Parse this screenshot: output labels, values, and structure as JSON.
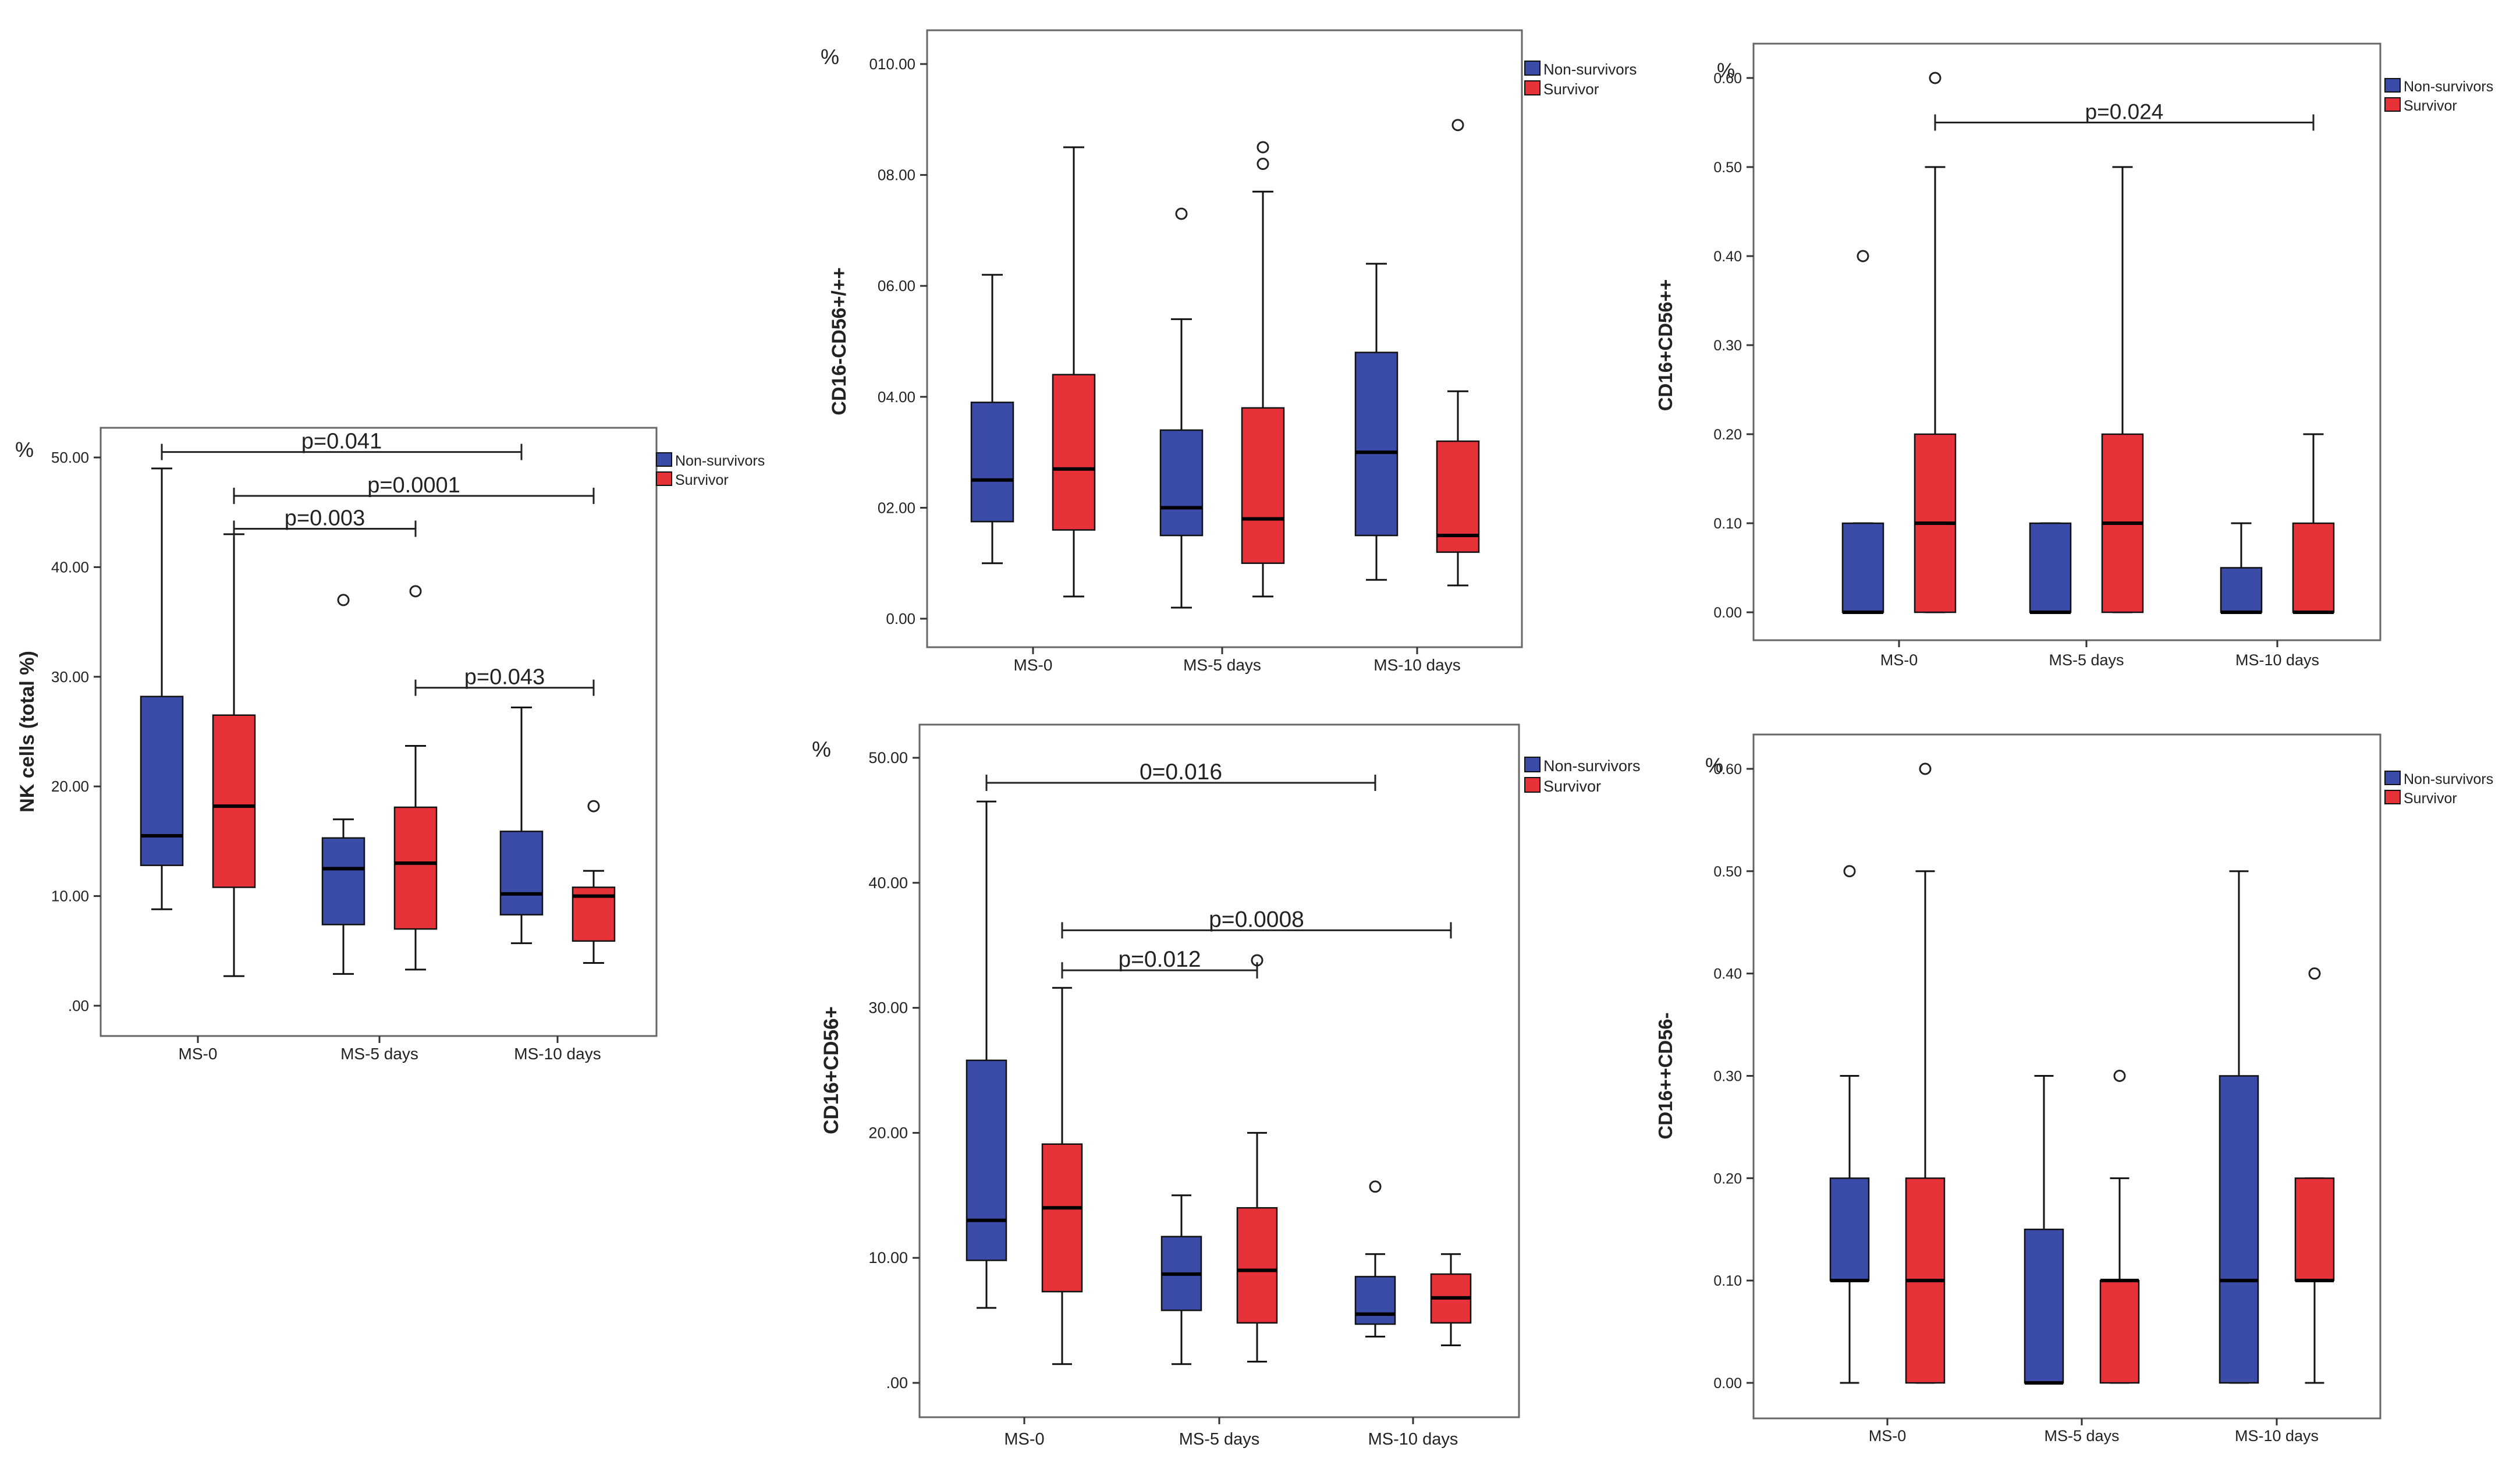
{
  "colors": {
    "nonsurvivor": "#3a4ba8",
    "survivor": "#e8323a",
    "axis": "#333333",
    "frame": "#666666"
  },
  "chart_data": [
    {
      "id": "nk",
      "type": "boxplot",
      "ylabel": "NK cells (total %)",
      "unit": "%",
      "ylim": [
        0,
        50
      ],
      "yticks": [
        0,
        10,
        20,
        30,
        40,
        50
      ],
      "ytick_labels": [
        ".00",
        "10.00",
        "20.00",
        "30.00",
        "40.00",
        "50.00"
      ],
      "categories": [
        "MS-0",
        "MS-5 days",
        "MS-10 days"
      ],
      "legend": [
        "Non-survivors",
        "Survivor"
      ],
      "series": [
        {
          "name": "Non-survivors",
          "color": "nonsurvivor",
          "boxes": [
            {
              "min": 8.8,
              "q1": 12.8,
              "median": 15.5,
              "q3": 28.2,
              "max": 49,
              "outliers": []
            },
            {
              "min": 2.9,
              "q1": 7.4,
              "median": 12.5,
              "q3": 15.3,
              "max": 17,
              "outliers": [
                37
              ]
            },
            {
              "min": 5.7,
              "q1": 8.3,
              "median": 10.2,
              "q3": 15.9,
              "max": 27.2,
              "outliers": []
            }
          ]
        },
        {
          "name": "Survivor",
          "color": "survivor",
          "boxes": [
            {
              "min": 2.7,
              "q1": 10.8,
              "median": 18.2,
              "q3": 26.5,
              "max": 43,
              "outliers": []
            },
            {
              "min": 3.3,
              "q1": 7,
              "median": 13,
              "q3": 18.1,
              "max": 23.7,
              "outliers": [
                37.8
              ]
            },
            {
              "min": 3.9,
              "q1": 5.9,
              "median": 10,
              "q3": 10.8,
              "max": 12.3,
              "outliers": [
                18.2
              ]
            }
          ]
        }
      ],
      "annotations": [
        {
          "label": "p=0.041",
          "from": [
            0,
            0
          ],
          "to": [
            2,
            0
          ],
          "y": 50.5
        },
        {
          "label": "p=0.0001",
          "from": [
            0,
            1
          ],
          "to": [
            2,
            1
          ],
          "y": 46.5
        },
        {
          "label": "p=0.003",
          "from": [
            0,
            1
          ],
          "to": [
            1,
            1
          ],
          "y": 43.5
        },
        {
          "label": "p=0.043",
          "from": [
            1,
            1
          ],
          "to": [
            2,
            1
          ],
          "y": 29
        }
      ]
    },
    {
      "id": "cd16neg",
      "type": "boxplot",
      "ylabel": "CD16-CD56+/++",
      "unit": "%",
      "ylim": [
        0,
        10
      ],
      "yticks": [
        0,
        2,
        4,
        6,
        8,
        10
      ],
      "ytick_labels": [
        "0.00",
        "02.00",
        "04.00",
        "06.00",
        "08.00",
        "010.00"
      ],
      "categories": [
        "MS-0",
        "MS-5 days",
        "MS-10 days"
      ],
      "legend": [
        "Non-survivors",
        "Survivor"
      ],
      "series": [
        {
          "name": "Non-survivors",
          "color": "nonsurvivor",
          "boxes": [
            {
              "min": 1,
              "q1": 1.75,
              "median": 2.5,
              "q3": 3.9,
              "max": 6.2,
              "outliers": []
            },
            {
              "min": 0.2,
              "q1": 1.5,
              "median": 2,
              "q3": 3.4,
              "max": 5.4,
              "outliers": [
                7.3
              ]
            },
            {
              "min": 0.7,
              "q1": 1.5,
              "median": 3,
              "q3": 4.8,
              "max": 6.4,
              "outliers": []
            }
          ]
        },
        {
          "name": "Survivor",
          "color": "survivor",
          "boxes": [
            {
              "min": 0.4,
              "q1": 1.6,
              "median": 2.7,
              "q3": 4.4,
              "max": 8.5,
              "outliers": []
            },
            {
              "min": 0.4,
              "q1": 1,
              "median": 1.8,
              "q3": 3.8,
              "max": 7.7,
              "outliers": [
                8.2,
                8.5
              ]
            },
            {
              "min": 0.6,
              "q1": 1.2,
              "median": 1.5,
              "q3": 3.2,
              "max": 4.1,
              "outliers": [
                8.9
              ]
            }
          ]
        }
      ],
      "annotations": []
    },
    {
      "id": "cd16pos",
      "type": "boxplot",
      "ylabel": "CD16+CD56++",
      "unit": "%",
      "ylim": [
        0,
        0.6
      ],
      "yticks": [
        0,
        0.1,
        0.2,
        0.3,
        0.4,
        0.5,
        0.6
      ],
      "ytick_labels": [
        "0.00",
        "0.10",
        "0.20",
        "0.30",
        "0.40",
        "0.50",
        "0.60"
      ],
      "categories": [
        "MS-0",
        "MS-5 days",
        "MS-10 days"
      ],
      "legend": [
        "Non-survivors",
        "Survivor"
      ],
      "series": [
        {
          "name": "Non-survivors",
          "color": "nonsurvivor",
          "boxes": [
            {
              "min": 0,
              "q1": 0,
              "median": 0,
              "q3": 0.1,
              "max": 0.1,
              "outliers": [
                0.4
              ]
            },
            {
              "min": 0,
              "q1": 0,
              "median": 0,
              "q3": 0.1,
              "max": 0.1,
              "outliers": []
            },
            {
              "min": 0,
              "q1": 0,
              "median": 0,
              "q3": 0.05,
              "max": 0.1,
              "outliers": []
            }
          ]
        },
        {
          "name": "Survivor",
          "color": "survivor",
          "boxes": [
            {
              "min": 0,
              "q1": 0,
              "median": 0.1,
              "q3": 0.2,
              "max": 0.5,
              "outliers": [
                0.6
              ]
            },
            {
              "min": 0,
              "q1": 0,
              "median": 0.1,
              "q3": 0.2,
              "max": 0.5,
              "outliers": []
            },
            {
              "min": 0,
              "q1": 0,
              "median": 0,
              "q3": 0.1,
              "max": 0.2,
              "outliers": []
            }
          ]
        }
      ],
      "annotations": [
        {
          "label": "p=0.024",
          "from": [
            0,
            1
          ],
          "to": [
            2,
            1
          ],
          "y": 0.55
        }
      ]
    },
    {
      "id": "cd16cd56",
      "type": "boxplot",
      "ylabel": "CD16+CD56+",
      "unit": "%",
      "ylim": [
        0,
        50
      ],
      "yticks": [
        0,
        10,
        20,
        30,
        40,
        50
      ],
      "ytick_labels": [
        ".00",
        "10.00",
        "20.00",
        "30.00",
        "40.00",
        "50.00"
      ],
      "categories": [
        "MS-0",
        "MS-5 days",
        "MS-10 days"
      ],
      "legend": [
        "Non-survivors",
        "Survivor"
      ],
      "series": [
        {
          "name": "Non-survivors",
          "color": "nonsurvivor",
          "boxes": [
            {
              "min": 6,
              "q1": 9.8,
              "median": 13,
              "q3": 25.8,
              "max": 46.5,
              "outliers": []
            },
            {
              "min": 1.5,
              "q1": 5.8,
              "median": 8.7,
              "q3": 11.7,
              "max": 15,
              "outliers": []
            },
            {
              "min": 3.7,
              "q1": 4.7,
              "median": 5.5,
              "q3": 8.5,
              "max": 10.3,
              "outliers": [
                15.7
              ]
            }
          ]
        },
        {
          "name": "Survivor",
          "color": "survivor",
          "boxes": [
            {
              "min": 1.5,
              "q1": 7.3,
              "median": 14,
              "q3": 19.1,
              "max": 31.6,
              "outliers": []
            },
            {
              "min": 1.7,
              "q1": 4.8,
              "median": 9,
              "q3": 14,
              "max": 20,
              "outliers": [
                33.8
              ]
            },
            {
              "min": 3,
              "q1": 4.8,
              "median": 6.8,
              "q3": 8.7,
              "max": 10.3,
              "outliers": []
            }
          ]
        }
      ],
      "annotations": [
        {
          "label": "0=0.016",
          "from": [
            0,
            0
          ],
          "to": [
            2,
            0
          ],
          "y": 48
        },
        {
          "label": "p=0.0008",
          "from": [
            0,
            1
          ],
          "to": [
            2,
            1
          ],
          "y": 36.2
        },
        {
          "label": "p=0.012",
          "from": [
            0,
            1
          ],
          "to": [
            1,
            1
          ],
          "y": 33
        }
      ]
    },
    {
      "id": "cd16pp",
      "type": "boxplot",
      "ylabel": "CD16++CD56-",
      "unit": "%",
      "ylim": [
        0,
        0.6
      ],
      "yticks": [
        0,
        0.1,
        0.2,
        0.3,
        0.4,
        0.5,
        0.6
      ],
      "ytick_labels": [
        "0.00",
        "0.10",
        "0.20",
        "0.30",
        "0.40",
        "0.50",
        "0.60"
      ],
      "categories": [
        "MS-0",
        "MS-5 days",
        "MS-10 days"
      ],
      "legend": [
        "Non-survivors",
        "Survivor"
      ],
      "series": [
        {
          "name": "Non-survivors",
          "color": "nonsurvivor",
          "boxes": [
            {
              "min": 0,
              "q1": 0.1,
              "median": 0.1,
              "q3": 0.2,
              "max": 0.3,
              "outliers": [
                0.5
              ]
            },
            {
              "min": 0,
              "q1": 0,
              "median": 0,
              "q3": 0.15,
              "max": 0.3,
              "outliers": []
            },
            {
              "min": 0,
              "q1": 0,
              "median": 0.1,
              "q3": 0.3,
              "max": 0.5,
              "outliers": []
            }
          ]
        },
        {
          "name": "Survivor",
          "color": "survivor",
          "boxes": [
            {
              "min": 0,
              "q1": 0,
              "median": 0.1,
              "q3": 0.2,
              "max": 0.5,
              "outliers": [
                0.6
              ]
            },
            {
              "min": 0,
              "q1": 0,
              "median": 0.1,
              "q3": 0.1,
              "max": 0.2,
              "outliers": [
                0.3
              ]
            },
            {
              "min": 0,
              "q1": 0.1,
              "median": 0.1,
              "q3": 0.2,
              "max": 0.2,
              "outliers": [
                0.4
              ]
            }
          ]
        }
      ],
      "annotations": []
    }
  ]
}
